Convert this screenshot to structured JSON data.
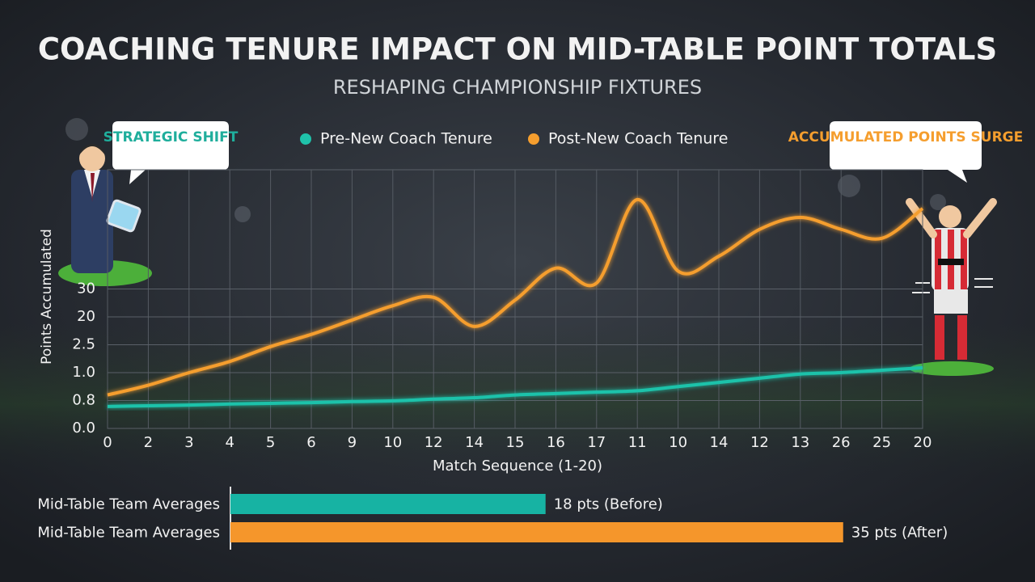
{
  "header": {
    "title": "COACHING TENURE IMPACT ON MID-TABLE POINT TOTALS",
    "subtitle": "RESHAPING CHAMPIONSHIP FIXTURES"
  },
  "chart_data": [
    {
      "type": "line",
      "y_label": "Points Accumulated",
      "x_label": "Match Sequence (1-20)",
      "annotations": [
        "STRATEGIC SHIFT",
        "ACCUMULATED POINTS SURGE"
      ],
      "categories": [
        "0",
        "2",
        "3",
        "4",
        "5",
        "6",
        "9",
        "10",
        "12",
        "14",
        "15",
        "16",
        "17",
        "11",
        "10",
        "14",
        "12",
        "13",
        "26",
        "25",
        "20"
      ],
      "series": [
        {
          "name": "Pre-New Coach Tenure",
          "color": "#1fc2aa",
          "values": [
            0.63,
            0.65,
            0.67,
            0.7,
            0.72,
            0.74,
            0.77,
            0.79,
            0.81,
            0.82,
            0.84,
            0.85,
            0.86,
            0.87,
            0.9,
            0.93,
            0.96,
            0.99,
            1.0,
            1.13,
            1.26
          ]
        },
        {
          "name": "Post-New Coach Tenure",
          "color": "#f59e2e",
          "values": [
            0.84,
            0.91,
            1.0,
            1.6,
            2.4,
            9,
            18,
            24,
            27,
            14,
            26,
            37,
            32,
            60,
            36,
            41,
            50,
            54,
            50,
            47,
            57
          ]
        }
      ],
      "ylim": [
        0,
        70
      ],
      "yticks": [
        {
          "value": 0,
          "label": "0.0"
        },
        0.8,
        {
          "value": 1,
          "label": "1.0"
        },
        2.5,
        20,
        30
      ],
      "grid": true,
      "legend": "top"
    },
    {
      "type": "hbar",
      "categories": [
        "Mid-Table Team Averages",
        "Mid-Table Team Averages"
      ],
      "values": [
        18,
        35
      ],
      "value_labels": [
        "18 pts (Before)",
        "35 pts (After)"
      ],
      "colors": [
        "#17b3a3",
        "#f5962b"
      ],
      "xlim": [
        0,
        40
      ]
    }
  ]
}
